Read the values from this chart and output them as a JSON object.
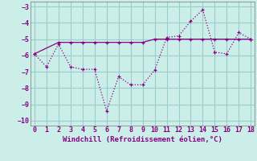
{
  "xlabel": "Windchill (Refroidissement éolien,°C)",
  "line1_x": [
    0,
    1,
    2,
    3,
    4,
    5,
    6,
    7,
    8,
    9,
    10,
    11,
    12,
    13,
    14,
    15,
    16,
    17,
    18
  ],
  "line1_y": [
    -5.9,
    -6.7,
    -5.3,
    -6.7,
    -6.85,
    -6.85,
    -9.4,
    -7.3,
    -7.8,
    -7.8,
    -6.9,
    -4.9,
    -4.8,
    -3.9,
    -3.2,
    -5.8,
    -5.9,
    -4.6,
    -5.0
  ],
  "line2_x": [
    0,
    2,
    3,
    4,
    5,
    6,
    7,
    8,
    9,
    10,
    11,
    12,
    13,
    14,
    15,
    16,
    17,
    18
  ],
  "line2_y": [
    -5.9,
    -5.2,
    -5.2,
    -5.2,
    -5.2,
    -5.2,
    -5.2,
    -5.2,
    -5.2,
    -5.0,
    -5.0,
    -5.0,
    -5.0,
    -5.0,
    -5.0,
    -5.0,
    -5.0,
    -5.0
  ],
  "line_color": "#880088",
  "bg_color": "#cceee8",
  "grid_color": "#99cccc",
  "xlim": [
    -0.3,
    18.3
  ],
  "ylim": [
    -10.3,
    -2.7
  ],
  "xticks": [
    0,
    1,
    2,
    3,
    4,
    5,
    6,
    7,
    8,
    9,
    10,
    11,
    12,
    13,
    14,
    15,
    16,
    17,
    18
  ],
  "yticks": [
    -10,
    -9,
    -8,
    -7,
    -6,
    -5,
    -4,
    -3
  ]
}
